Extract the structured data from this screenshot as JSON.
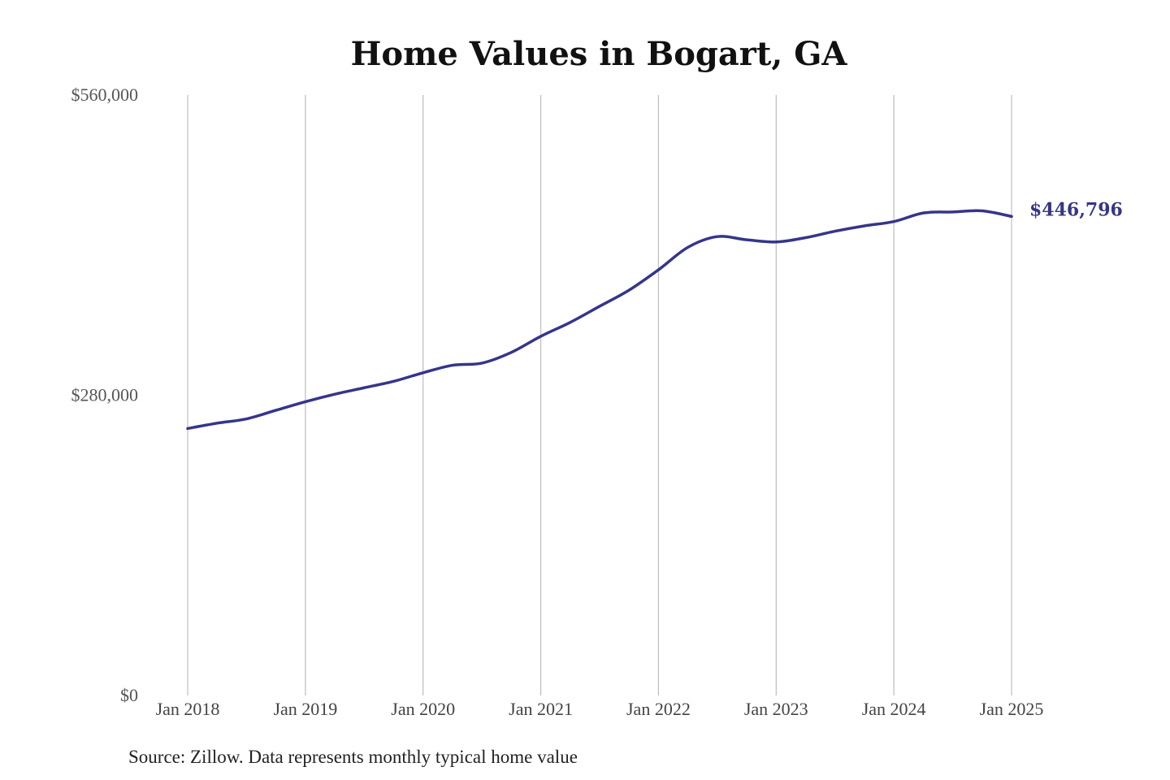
{
  "chart_data": {
    "type": "line",
    "title": "Home Values in Bogart, GA",
    "source": "Source: Zillow. Data represents monthly typical home value",
    "ylim": [
      0,
      560000
    ],
    "y_ticks": [
      {
        "value": 0,
        "label": "$0"
      },
      {
        "value": 280000,
        "label": "$280,000"
      },
      {
        "value": 560000,
        "label": "$560,000"
      }
    ],
    "xlim": [
      "2018-01",
      "2025-01"
    ],
    "x_ticks": [
      {
        "date": "2018-01",
        "label": "Jan 2018"
      },
      {
        "date": "2019-01",
        "label": "Jan 2019"
      },
      {
        "date": "2020-01",
        "label": "Jan 2020"
      },
      {
        "date": "2021-01",
        "label": "Jan 2021"
      },
      {
        "date": "2022-01",
        "label": "Jan 2022"
      },
      {
        "date": "2023-01",
        "label": "Jan 2023"
      },
      {
        "date": "2024-01",
        "label": "Jan 2024"
      },
      {
        "date": "2025-01",
        "label": "Jan 2025"
      }
    ],
    "grid": {
      "vertical": true,
      "horizontal": false
    },
    "series": [
      {
        "color": "#35358a",
        "end_label": "$446,796",
        "points": [
          {
            "x": "2018-01",
            "y": 249000
          },
          {
            "x": "2018-04",
            "y": 254000
          },
          {
            "x": "2018-07",
            "y": 258000
          },
          {
            "x": "2018-10",
            "y": 266000
          },
          {
            "x": "2019-01",
            "y": 274000
          },
          {
            "x": "2019-04",
            "y": 281000
          },
          {
            "x": "2019-07",
            "y": 287000
          },
          {
            "x": "2019-10",
            "y": 293000
          },
          {
            "x": "2020-01",
            "y": 301000
          },
          {
            "x": "2020-04",
            "y": 308000
          },
          {
            "x": "2020-07",
            "y": 310000
          },
          {
            "x": "2020-10",
            "y": 320000
          },
          {
            "x": "2021-01",
            "y": 335000
          },
          {
            "x": "2021-04",
            "y": 348000
          },
          {
            "x": "2021-07",
            "y": 363000
          },
          {
            "x": "2021-10",
            "y": 378000
          },
          {
            "x": "2022-01",
            "y": 397000
          },
          {
            "x": "2022-04",
            "y": 418000
          },
          {
            "x": "2022-07",
            "y": 428000
          },
          {
            "x": "2022-10",
            "y": 425000
          },
          {
            "x": "2023-01",
            "y": 423000
          },
          {
            "x": "2023-04",
            "y": 427000
          },
          {
            "x": "2023-07",
            "y": 433000
          },
          {
            "x": "2023-10",
            "y": 438000
          },
          {
            "x": "2024-01",
            "y": 442000
          },
          {
            "x": "2024-04",
            "y": 450000
          },
          {
            "x": "2024-07",
            "y": 451000
          },
          {
            "x": "2024-10",
            "y": 452000
          },
          {
            "x": "2025-01",
            "y": 446796
          }
        ]
      }
    ]
  }
}
